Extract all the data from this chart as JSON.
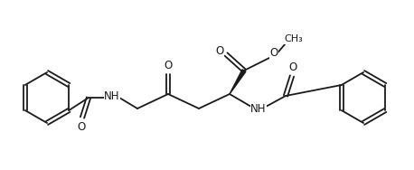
{
  "bg_color": "#ffffff",
  "line_color": "#1a1a1a",
  "lw": 1.3,
  "figsize": [
    4.58,
    1.88
  ],
  "dpi": 100,
  "xlim": [
    0,
    458
  ],
  "ylim": [
    0,
    188
  ]
}
